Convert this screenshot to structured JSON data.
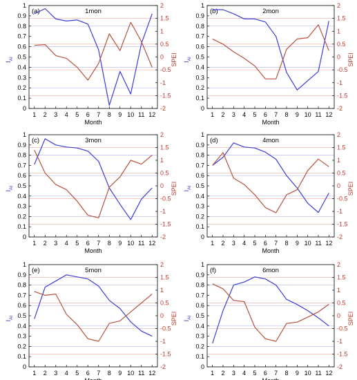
{
  "colors": {
    "iai": "#3b3bd6",
    "spei": "#b5533c",
    "grid_blue": "#b9bdf2",
    "grid_red": "#f0b9b0"
  },
  "chart_data": [
    {
      "type": "line",
      "label": "(a)",
      "title": "1mon",
      "xlabel": "Month",
      "ylabel_left": "I",
      "ylabel_left_sub": "AI",
      "ylabel_right": "SPEI",
      "x": [
        1,
        2,
        3,
        4,
        5,
        6,
        7,
        8,
        9,
        10,
        11,
        12
      ],
      "ylim_left": [
        0,
        1
      ],
      "ylim_right": [
        -2,
        2
      ],
      "series": [
        {
          "axis": "left",
          "values": [
            0.92,
            0.97,
            0.87,
            0.85,
            0.86,
            0.82,
            0.57,
            0.03,
            0.36,
            0.14,
            0.63,
            0.92
          ]
        },
        {
          "axis": "right",
          "values": [
            0.45,
            0.48,
            0.05,
            -0.05,
            -0.4,
            -0.9,
            -0.25,
            0.9,
            0.25,
            1.35,
            0.6,
            -0.4
          ]
        }
      ]
    },
    {
      "type": "line",
      "label": "(b)",
      "title": "2mon",
      "xlabel": "Month",
      "ylabel_left": "I",
      "ylabel_left_sub": "AI",
      "ylabel_right": "SPEI",
      "x": [
        1,
        2,
        3,
        4,
        5,
        6,
        7,
        8,
        9,
        10,
        11,
        12
      ],
      "ylim_left": [
        0,
        1
      ],
      "ylim_right": [
        -2,
        2
      ],
      "series": [
        {
          "axis": "left",
          "values": [
            0.96,
            0.96,
            0.92,
            0.87,
            0.87,
            0.84,
            0.7,
            0.35,
            0.18,
            0.27,
            0.36,
            0.85
          ]
        },
        {
          "axis": "right",
          "values": [
            0.7,
            0.5,
            0.2,
            -0.05,
            -0.35,
            -0.85,
            -0.85,
            0.3,
            0.7,
            0.75,
            1.25,
            0.25
          ]
        }
      ]
    },
    {
      "type": "line",
      "label": "(c)",
      "title": "3mon",
      "xlabel": "Month",
      "ylabel_left": "I",
      "ylabel_left_sub": "AI",
      "ylabel_right": "SPEI",
      "x": [
        1,
        2,
        3,
        4,
        5,
        6,
        7,
        8,
        9,
        10,
        11,
        12
      ],
      "ylim_left": [
        0,
        1
      ],
      "ylim_right": [
        -2,
        2
      ],
      "series": [
        {
          "axis": "left",
          "values": [
            0.71,
            0.96,
            0.9,
            0.88,
            0.87,
            0.84,
            0.74,
            0.48,
            0.32,
            0.17,
            0.37,
            0.48
          ]
        },
        {
          "axis": "right",
          "values": [
            1.4,
            0.5,
            0.05,
            -0.15,
            -0.6,
            -1.15,
            -1.25,
            -0.05,
            0.35,
            1.0,
            0.85,
            1.2
          ]
        }
      ]
    },
    {
      "type": "line",
      "label": "(d)",
      "title": "4mon",
      "xlabel": "Month",
      "ylabel_left": "I",
      "ylabel_left_sub": "AI",
      "ylabel_right": "SPEI",
      "x": [
        1,
        2,
        3,
        4,
        5,
        6,
        7,
        8,
        9,
        10,
        11,
        12
      ],
      "ylim_left": [
        0,
        1
      ],
      "ylim_right": [
        -2,
        2
      ],
      "series": [
        {
          "axis": "left",
          "values": [
            0.7,
            0.78,
            0.92,
            0.88,
            0.87,
            0.83,
            0.76,
            0.6,
            0.48,
            0.33,
            0.24,
            0.43
          ]
        },
        {
          "axis": "right",
          "values": [
            0.8,
            1.3,
            0.3,
            0.05,
            -0.35,
            -0.85,
            -1.05,
            -0.35,
            -0.15,
            0.6,
            1.05,
            0.75
          ]
        }
      ]
    },
    {
      "type": "line",
      "label": "(e)",
      "title": "5mon",
      "xlabel": "Month",
      "ylabel_left": "I",
      "ylabel_left_sub": "AI",
      "ylabel_right": "SPEI",
      "x": [
        1,
        2,
        3,
        4,
        5,
        6,
        7,
        8,
        9,
        10,
        11,
        12
      ],
      "ylim_left": [
        0,
        1
      ],
      "ylim_right": [
        -2,
        2
      ],
      "series": [
        {
          "axis": "left",
          "values": [
            0.47,
            0.78,
            0.84,
            0.9,
            0.88,
            0.86,
            0.79,
            0.65,
            0.57,
            0.44,
            0.35,
            0.3
          ]
        },
        {
          "axis": "right",
          "values": [
            0.95,
            0.8,
            0.85,
            0.05,
            -0.35,
            -0.9,
            -1.0,
            -0.3,
            -0.2,
            0.15,
            0.5,
            0.85
          ]
        }
      ]
    },
    {
      "type": "line",
      "label": "(f)",
      "title": "6mon",
      "xlabel": "Month",
      "ylabel_left": "I",
      "ylabel_left_sub": "AI",
      "ylabel_right": "SPEI",
      "x": [
        1,
        2,
        3,
        4,
        5,
        6,
        7,
        8,
        9,
        10,
        11,
        12
      ],
      "ylim_left": [
        0,
        1
      ],
      "ylim_right": [
        -2,
        2
      ],
      "series": [
        {
          "axis": "left",
          "values": [
            0.23,
            0.55,
            0.8,
            0.83,
            0.88,
            0.86,
            0.8,
            0.66,
            0.61,
            0.55,
            0.48,
            0.4
          ]
        },
        {
          "axis": "right",
          "values": [
            1.25,
            1.05,
            0.6,
            0.55,
            -0.45,
            -0.9,
            -1.0,
            -0.3,
            -0.25,
            -0.05,
            0.15,
            0.45
          ]
        }
      ]
    }
  ]
}
